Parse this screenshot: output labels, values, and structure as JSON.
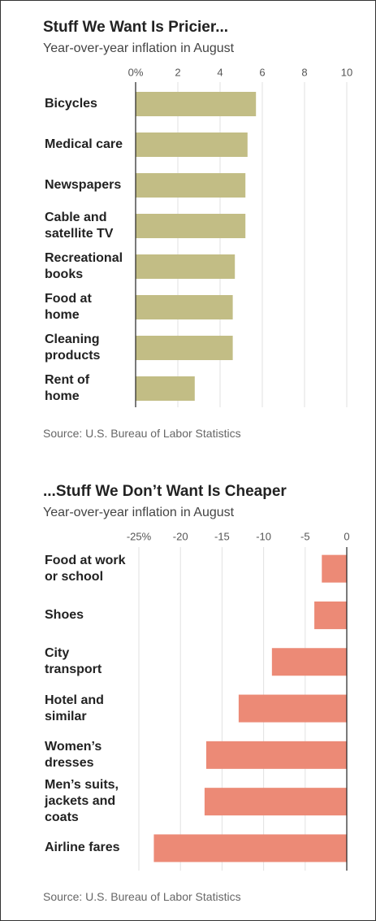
{
  "chart_data": [
    {
      "type": "bar",
      "orientation": "horizontal",
      "title": "Stuff We Want Is Pricier...",
      "subtitle": "Year-over-year inflation in August",
      "categories": [
        "Bicycles",
        "Medical care",
        "Newspapers",
        "Cable and\nsatellite TV",
        "Recreational\nbooks",
        "Food at\nhome",
        "Cleaning\nproducts",
        "Rent of\nhome"
      ],
      "values": [
        5.7,
        5.3,
        5.2,
        5.2,
        4.7,
        4.6,
        4.6,
        2.8
      ],
      "color": "#c2bd85",
      "xlim": [
        0,
        10
      ],
      "xticks": [
        {
          "value": 0,
          "label": "0%"
        },
        2,
        4,
        6,
        8,
        10
      ],
      "grid": true,
      "source": "Source: U.S. Bureau of Labor Statistics"
    },
    {
      "type": "bar",
      "orientation": "horizontal",
      "title": "...Stuff We Don’t Want Is Cheaper",
      "subtitle": "Year-over-year inflation in August",
      "categories": [
        "Food at work\nor school",
        "Shoes",
        "City\ntransport",
        "Hotel and\nsimilar",
        "Women’s\ndresses",
        "Men’s suits,\njackets and\ncoats",
        "Airline fares"
      ],
      "values": [
        -3.0,
        -3.9,
        -9.0,
        -13.0,
        -16.9,
        -17.1,
        -23.2
      ],
      "color": "#ec8a76",
      "xlim": [
        -25,
        0
      ],
      "xticks": [
        {
          "value": -25,
          "label": "-25%"
        },
        -20,
        -15,
        -10,
        -5,
        0
      ],
      "grid": true,
      "source": "Source: U.S. Bureau of Labor Statistics"
    }
  ]
}
